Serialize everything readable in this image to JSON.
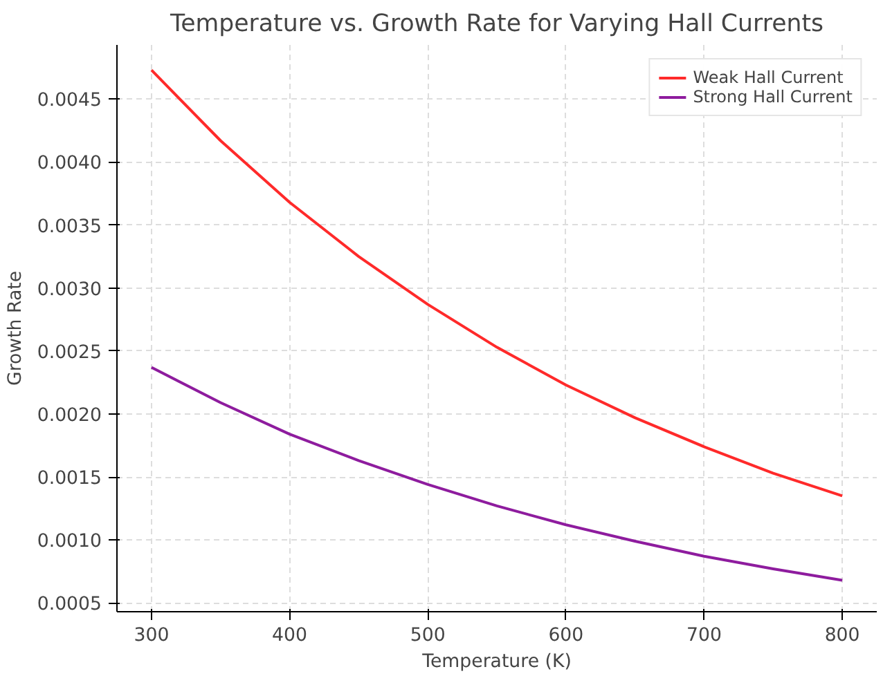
{
  "chart_data": {
    "type": "line",
    "title": "Temperature vs. Growth Rate for Varying Hall Currents",
    "xlabel": "Temperature (K)",
    "ylabel": "Growth Rate",
    "x": [
      300,
      350,
      400,
      450,
      500,
      550,
      600,
      650,
      700,
      750,
      800
    ],
    "series": [
      {
        "name": "Weak Hall Current",
        "color": "#ff2a2a",
        "values": [
          0.00473,
          0.00417,
          0.00368,
          0.00325,
          0.00287,
          0.00253,
          0.00223,
          0.00197,
          0.00174,
          0.00153,
          0.00135
        ]
      },
      {
        "name": "Strong Hall Current",
        "color": "#8e1c9e",
        "values": [
          0.00237,
          0.00209,
          0.00184,
          0.00163,
          0.00144,
          0.00127,
          0.00112,
          0.00099,
          0.00087,
          0.00077,
          0.00068
        ]
      }
    ],
    "xlim": [
      275,
      825
    ],
    "ylim": [
      0.00043,
      0.00493
    ],
    "xticks": [
      300,
      400,
      500,
      600,
      700,
      800
    ],
    "yticks": [
      {
        "value": 0.0005,
        "label": "0.0005"
      },
      {
        "value": 0.001,
        "label": "0.0010"
      },
      {
        "value": 0.0015,
        "label": "0.0015"
      },
      {
        "value": 0.002,
        "label": "0.0020"
      },
      {
        "value": 0.0025,
        "label": "0.0025"
      },
      {
        "value": 0.003,
        "label": "0.0030"
      },
      {
        "value": 0.0035,
        "label": "0.0035"
      },
      {
        "value": 0.004,
        "label": "0.0040"
      },
      {
        "value": 0.0045,
        "label": "0.0045"
      }
    ],
    "grid": true,
    "legend": "top right",
    "line_style": "solid",
    "marker": "none"
  }
}
